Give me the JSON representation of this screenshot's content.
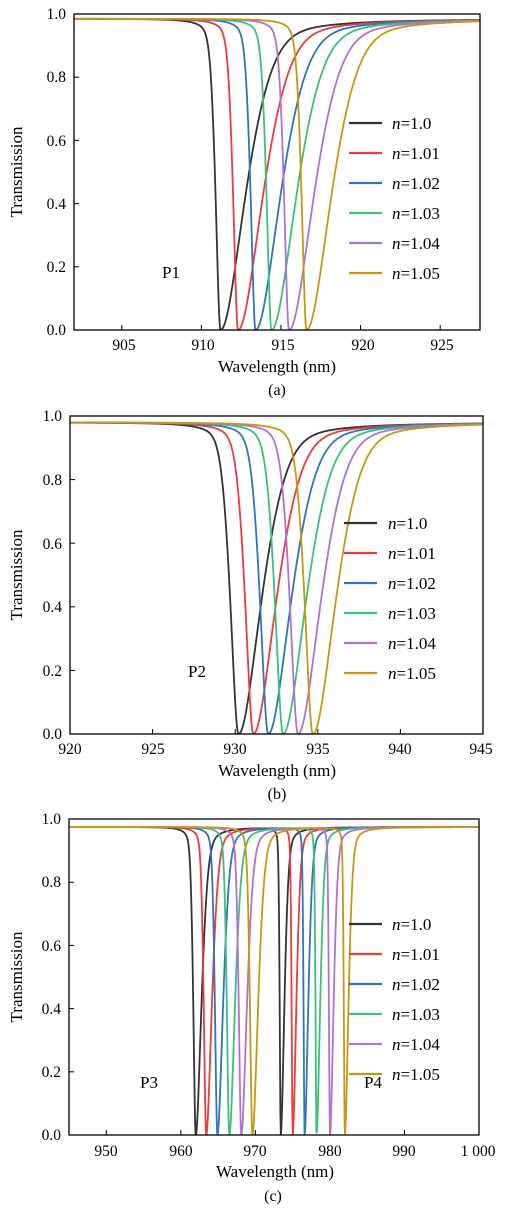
{
  "charts": [
    {
      "caption": "(a)",
      "xlabel": "Wavelength (nm)",
      "ylabel": "Transmission",
      "xticks": [
        "905",
        "910",
        "915",
        "920",
        "925"
      ],
      "yticks": [
        "0.0",
        "0.2",
        "0.4",
        "0.6",
        "0.8",
        "1.0"
      ],
      "peak_labels": [
        "P1"
      ]
    },
    {
      "caption": "(b)",
      "xlabel": "Wavelength (nm)",
      "ylabel": "Transmission",
      "xticks": [
        "920",
        "925",
        "930",
        "935",
        "940",
        "945"
      ],
      "yticks": [
        "0.0",
        "0.2",
        "0.4",
        "0.6",
        "0.8",
        "1.0"
      ],
      "peak_labels": [
        "P2"
      ]
    },
    {
      "caption": "(c)",
      "xlabel": "Wavelength (nm)",
      "ylabel": "Transmission",
      "xticks": [
        "950",
        "960",
        "970",
        "980",
        "990",
        "1 000"
      ],
      "yticks": [
        "0.0",
        "0.2",
        "0.4",
        "0.6",
        "0.8",
        "1.0"
      ],
      "peak_labels": [
        "P3",
        "P4"
      ]
    }
  ],
  "legend": {
    "prefix": "n",
    "entries": [
      "=1.0",
      "=1.01",
      "=1.02",
      "=1.03",
      "=1.04",
      "=1.05"
    ]
  },
  "chart_data": [
    {
      "type": "line",
      "xlim": [
        902,
        927.5
      ],
      "ylim": [
        0,
        1
      ],
      "series": [
        {
          "name": "n=1.0",
          "color": "#333333",
          "dips": [
            {
              "center": 911.2,
              "width_left": 0.55,
              "width_right": 2.8
            }
          ]
        },
        {
          "name": "n=1.01",
          "color": "#ec3c3c",
          "dips": [
            {
              "center": 912.3,
              "width_left": 0.55,
              "width_right": 2.8
            }
          ]
        },
        {
          "name": "n=1.02",
          "color": "#2f74c0",
          "dips": [
            {
              "center": 913.4,
              "width_left": 0.55,
              "width_right": 2.8
            }
          ]
        },
        {
          "name": "n=1.03",
          "color": "#3cc07a",
          "dips": [
            {
              "center": 914.4,
              "width_left": 0.55,
              "width_right": 2.8
            }
          ]
        },
        {
          "name": "n=1.04",
          "color": "#b070d8",
          "dips": [
            {
              "center": 915.5,
              "width_left": 0.55,
              "width_right": 2.8
            }
          ]
        },
        {
          "name": "n=1.05",
          "color": "#c89614",
          "dips": [
            {
              "center": 916.6,
              "width_left": 0.55,
              "width_right": 2.8
            }
          ]
        }
      ],
      "baseline": 0.985
    },
    {
      "type": "line",
      "xlim": [
        920,
        945
      ],
      "ylim": [
        0,
        1
      ],
      "series": [
        {
          "name": "n=1.0",
          "color": "#333333",
          "dips": [
            {
              "center": 930.2,
              "width_left": 0.9,
              "width_right": 2.5
            }
          ]
        },
        {
          "name": "n=1.01",
          "color": "#ec3c3c",
          "dips": [
            {
              "center": 931.1,
              "width_left": 0.9,
              "width_right": 2.5
            }
          ]
        },
        {
          "name": "n=1.02",
          "color": "#2f74c0",
          "dips": [
            {
              "center": 932.0,
              "width_left": 0.9,
              "width_right": 2.5
            }
          ]
        },
        {
          "name": "n=1.03",
          "color": "#3cc07a",
          "dips": [
            {
              "center": 932.9,
              "width_left": 0.9,
              "width_right": 2.5
            }
          ]
        },
        {
          "name": "n=1.04",
          "color": "#b070d8",
          "dips": [
            {
              "center": 933.8,
              "width_left": 0.9,
              "width_right": 2.5
            }
          ]
        },
        {
          "name": "n=1.05",
          "color": "#c89614",
          "dips": [
            {
              "center": 934.7,
              "width_left": 0.9,
              "width_right": 2.5
            }
          ]
        }
      ],
      "baseline": 0.98
    },
    {
      "type": "line",
      "xlim": [
        945,
        1000
      ],
      "ylim": [
        0,
        1
      ],
      "series": [
        {
          "name": "n=1.0",
          "color": "#333333",
          "dips": [
            {
              "center": 962.0,
              "width_left": 0.6,
              "width_right": 1.4
            },
            {
              "center": 973.4,
              "width_left": 0.25,
              "width_right": 0.9
            }
          ]
        },
        {
          "name": "n=1.01",
          "color": "#ec3c3c",
          "dips": [
            {
              "center": 963.4,
              "width_left": 0.6,
              "width_right": 1.4
            },
            {
              "center": 975.0,
              "width_left": 0.25,
              "width_right": 0.9
            }
          ]
        },
        {
          "name": "n=1.02",
          "color": "#2f74c0",
          "dips": [
            {
              "center": 964.9,
              "width_left": 0.6,
              "width_right": 1.4
            },
            {
              "center": 976.6,
              "width_left": 0.25,
              "width_right": 0.9
            }
          ]
        },
        {
          "name": "n=1.03",
          "color": "#3cc07a",
          "dips": [
            {
              "center": 966.5,
              "width_left": 0.6,
              "width_right": 1.4
            },
            {
              "center": 978.2,
              "width_left": 0.25,
              "width_right": 0.9
            }
          ]
        },
        {
          "name": "n=1.04",
          "color": "#b070d8",
          "dips": [
            {
              "center": 968.1,
              "width_left": 0.6,
              "width_right": 1.4
            },
            {
              "center": 980.0,
              "width_left": 0.25,
              "width_right": 0.9
            }
          ]
        },
        {
          "name": "n=1.05",
          "color": "#c89614",
          "dips": [
            {
              "center": 969.6,
              "width_left": 0.6,
              "width_right": 1.4
            },
            {
              "center": 982.0,
              "width_left": 0.25,
              "width_right": 0.9
            }
          ]
        }
      ],
      "baseline": 0.975
    }
  ]
}
